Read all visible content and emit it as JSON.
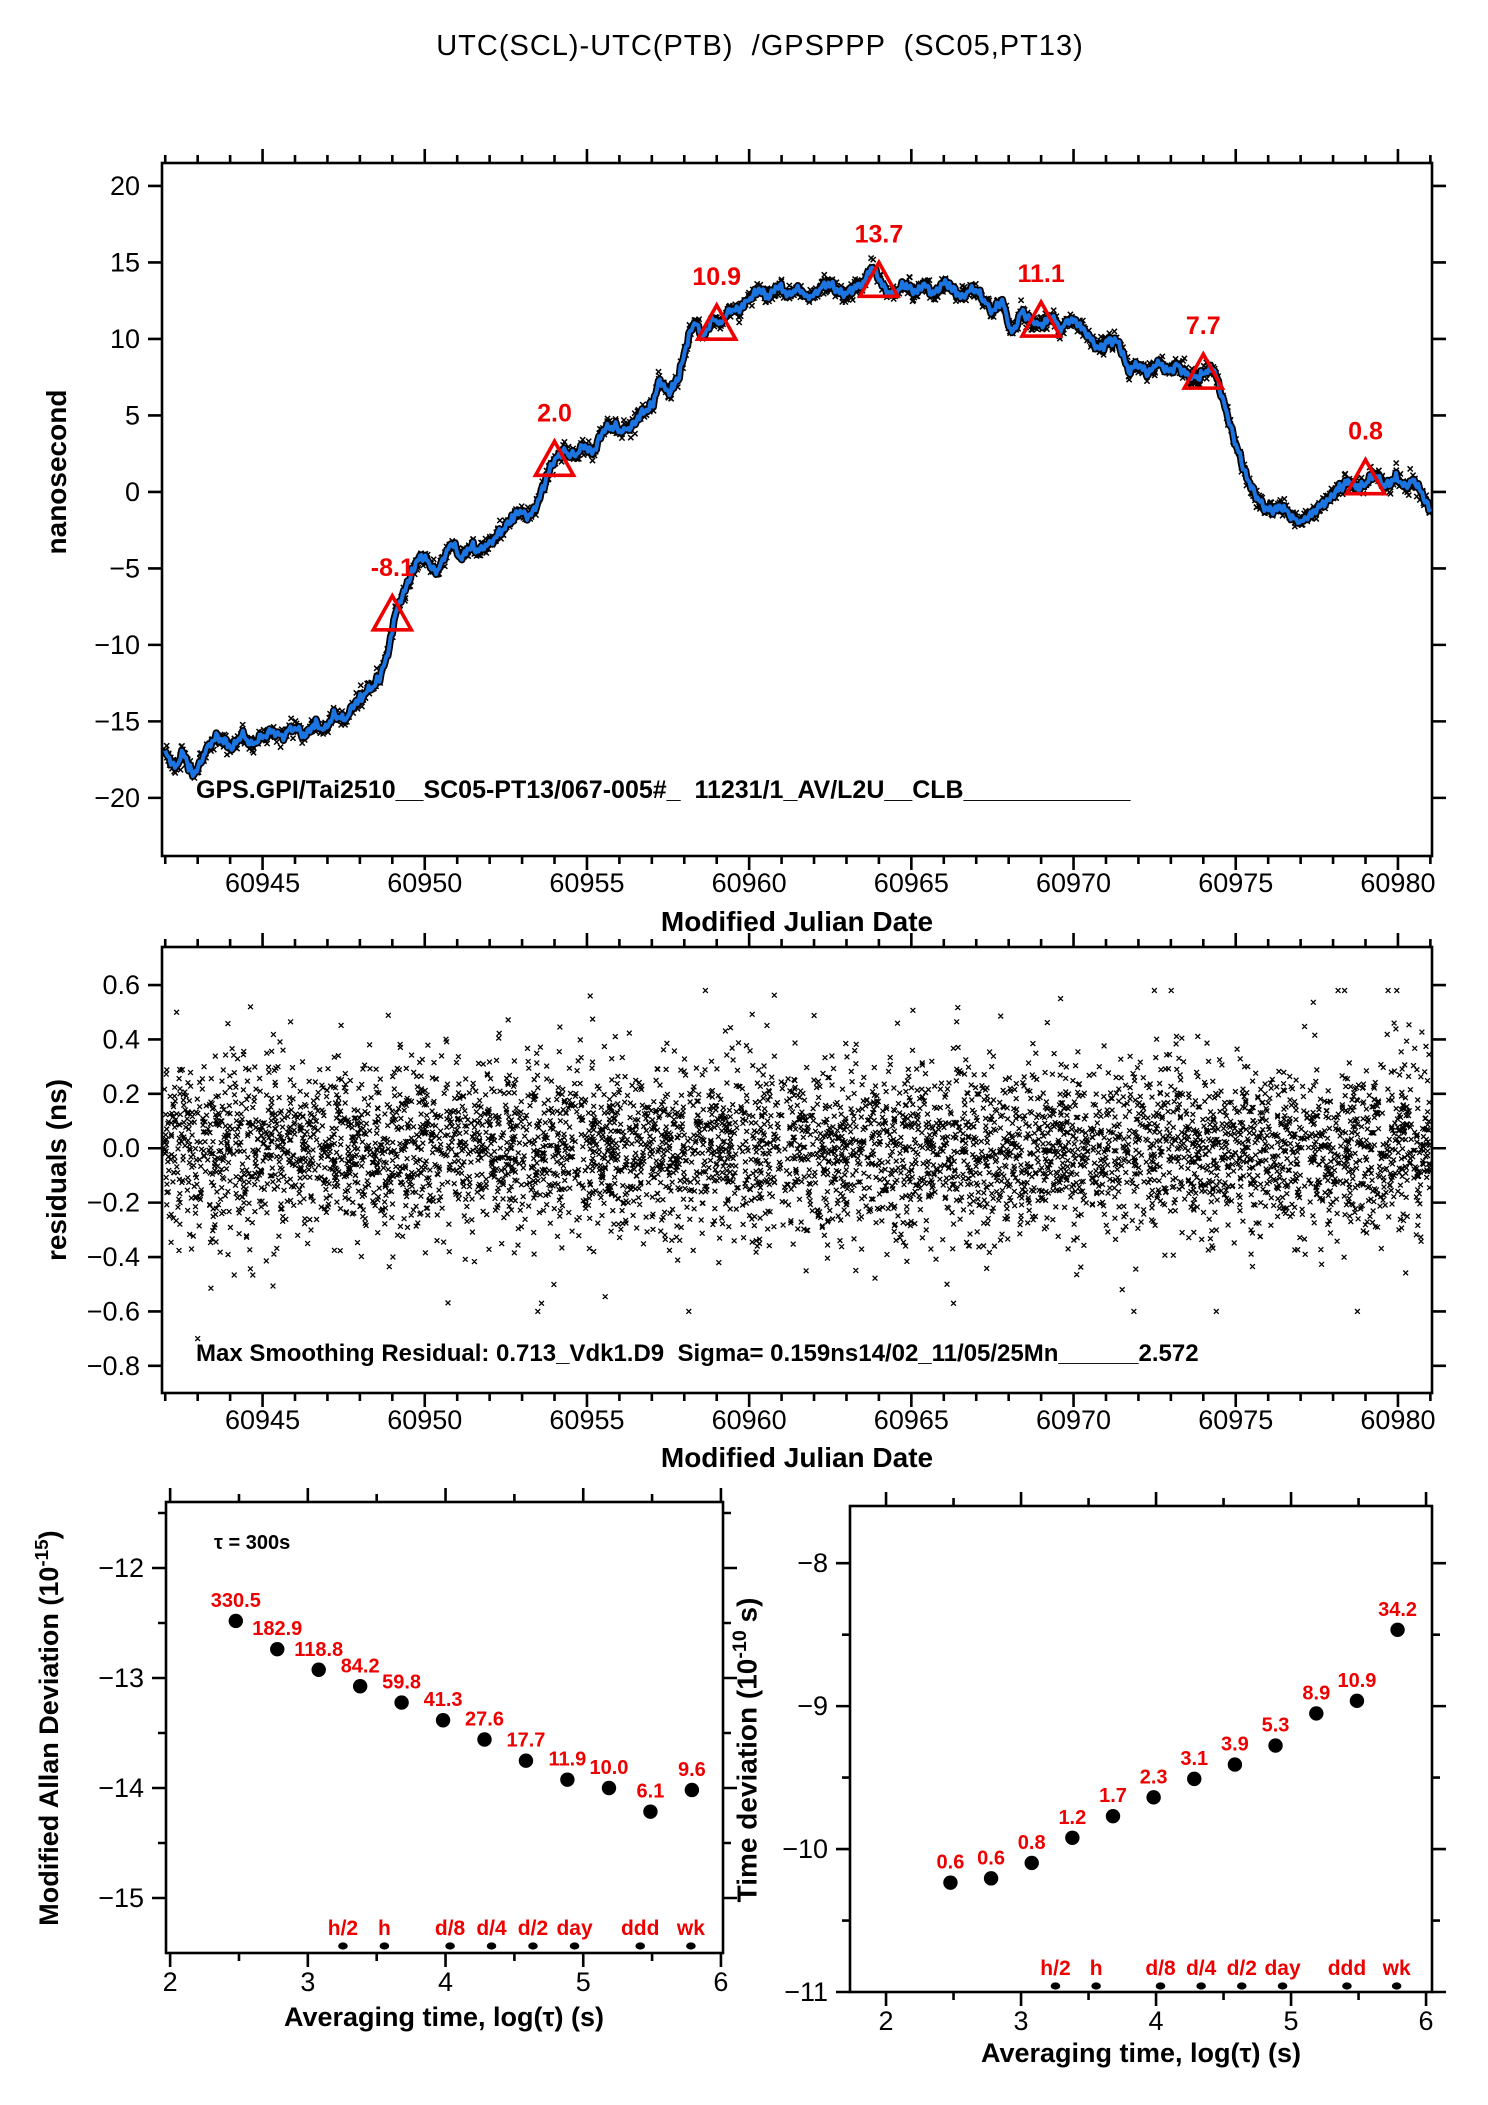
{
  "title": "UTC(SCL)-UTC(PTB)  /GPSPPP  (SC05,PT13)",
  "colors": {
    "red": "#ee0000",
    "blue": "#1b74e0",
    "black": "#000000"
  },
  "chart_data": [
    {
      "name": "clock-difference",
      "type": "line",
      "title": "UTC(SCL)-UTC(PTB)  /GPSPPP  (SC05,PT13)",
      "xlabel": "Modified Julian Date",
      "ylabel": "nanosecond",
      "annotation": "GPS.GPI/Tai2510__SC05-PT13/067-005#_  11231/1_AV/L2U__CLB____________",
      "xlim": [
        60941.9,
        60981.05
      ],
      "ylim": [
        -23.8,
        21.5
      ],
      "x_major_ticks": [
        60945,
        60950,
        60955,
        60960,
        60965,
        60970,
        60975,
        60980
      ],
      "x_tick_labels": [
        "60945",
        "60950",
        "60955",
        "60960",
        "60965",
        "60970",
        "60975",
        "60980"
      ],
      "y_ticks": [
        {
          "v": 20,
          "label": "20"
        },
        {
          "v": 15,
          "label": "15"
        },
        {
          "v": 10,
          "label": "10"
        },
        {
          "v": 5,
          "label": "5"
        },
        {
          "v": 0,
          "label": "0"
        },
        {
          "v": -5,
          "label": "−5"
        },
        {
          "v": -10,
          "label": "−10"
        },
        {
          "v": -15,
          "label": "−15"
        },
        {
          "v": -20,
          "label": "−20"
        }
      ],
      "markers": [
        {
          "x": 60949,
          "y": -8.1,
          "label": "-8.1"
        },
        {
          "x": 60954,
          "y": 2.0,
          "label": "2.0"
        },
        {
          "x": 60959,
          "y": 10.9,
          "label": "10.9"
        },
        {
          "x": 60964,
          "y": 13.7,
          "label": "13.7"
        },
        {
          "x": 60969,
          "y": 11.1,
          "label": "11.1"
        },
        {
          "x": 60974,
          "y": 7.7,
          "label": "7.7"
        },
        {
          "x": 60979,
          "y": 0.8,
          "label": "0.8"
        }
      ],
      "noise_band_ns": 0.26,
      "series_anchors": [
        [
          60942.0,
          -17.0
        ],
        [
          60942.3,
          -17.9
        ],
        [
          60942.55,
          -17.2
        ],
        [
          60942.85,
          -18.4
        ],
        [
          60943.1,
          -17.6
        ],
        [
          60943.4,
          -16.4
        ],
        [
          60943.75,
          -16.1
        ],
        [
          60944.05,
          -16.7
        ],
        [
          60944.35,
          -15.9
        ],
        [
          60944.65,
          -16.5
        ],
        [
          60944.95,
          -16.1
        ],
        [
          60945.3,
          -15.6
        ],
        [
          60945.6,
          -16.0
        ],
        [
          60945.95,
          -15.4
        ],
        [
          60946.3,
          -15.9
        ],
        [
          60946.6,
          -15.2
        ],
        [
          60946.9,
          -15.5
        ],
        [
          60947.2,
          -14.6
        ],
        [
          60947.5,
          -14.9
        ],
        [
          60947.8,
          -14.0
        ],
        [
          60948.1,
          -13.3
        ],
        [
          60948.4,
          -12.7
        ],
        [
          60948.65,
          -11.9
        ],
        [
          60948.9,
          -10.2
        ],
        [
          60949.1,
          -8.0
        ],
        [
          60949.35,
          -6.6
        ],
        [
          60949.6,
          -5.4
        ],
        [
          60949.85,
          -4.2
        ],
        [
          60950.1,
          -4.6
        ],
        [
          60950.35,
          -5.2
        ],
        [
          60950.6,
          -4.3
        ],
        [
          60950.85,
          -3.4
        ],
        [
          60951.1,
          -4.3
        ],
        [
          60951.4,
          -3.6
        ],
        [
          60951.7,
          -3.8
        ],
        [
          60952.0,
          -3.3
        ],
        [
          60952.3,
          -2.6
        ],
        [
          60952.6,
          -2.0
        ],
        [
          60952.9,
          -1.3
        ],
        [
          60953.2,
          -1.6
        ],
        [
          60953.5,
          -0.6
        ],
        [
          60953.8,
          1.2
        ],
        [
          60954.05,
          2.2
        ],
        [
          60954.3,
          2.6
        ],
        [
          60954.6,
          2.4
        ],
        [
          60954.9,
          3.0
        ],
        [
          60955.2,
          2.7
        ],
        [
          60955.5,
          4.0
        ],
        [
          60955.8,
          4.3
        ],
        [
          60956.1,
          4.0
        ],
        [
          60956.4,
          4.4
        ],
        [
          60956.7,
          5.2
        ],
        [
          60957.0,
          5.6
        ],
        [
          60957.25,
          7.2
        ],
        [
          60957.5,
          6.6
        ],
        [
          60957.8,
          7.4
        ],
        [
          60958.1,
          9.8
        ],
        [
          60958.35,
          11.0
        ],
        [
          60958.6,
          10.2
        ],
        [
          60958.85,
          11.2
        ],
        [
          60959.1,
          11.0
        ],
        [
          60959.4,
          11.8
        ],
        [
          60959.7,
          12.0
        ],
        [
          60960.0,
          12.6
        ],
        [
          60960.3,
          13.2
        ],
        [
          60960.6,
          12.8
        ],
        [
          60960.9,
          13.4
        ],
        [
          60961.2,
          12.9
        ],
        [
          60961.5,
          13.3
        ],
        [
          60961.8,
          12.7
        ],
        [
          60962.1,
          13.1
        ],
        [
          60962.4,
          13.6
        ],
        [
          60962.7,
          13.2
        ],
        [
          60963.0,
          13.0
        ],
        [
          60963.3,
          13.4
        ],
        [
          60963.6,
          13.9
        ],
        [
          60963.8,
          14.5
        ],
        [
          60964.0,
          13.9
        ],
        [
          60964.2,
          13.2
        ],
        [
          60964.5,
          13.0
        ],
        [
          60964.8,
          13.5
        ],
        [
          60965.1,
          13.1
        ],
        [
          60965.4,
          13.5
        ],
        [
          60965.7,
          13.0
        ],
        [
          60966.0,
          13.6
        ],
        [
          60966.3,
          13.2
        ],
        [
          60966.6,
          12.8
        ],
        [
          60966.9,
          13.3
        ],
        [
          60967.2,
          12.6
        ],
        [
          60967.5,
          11.9
        ],
        [
          60967.8,
          12.4
        ],
        [
          60968.1,
          10.5
        ],
        [
          60968.4,
          11.7
        ],
        [
          60968.7,
          11.2
        ],
        [
          60969.0,
          10.9
        ],
        [
          60969.3,
          11.4
        ],
        [
          60969.6,
          10.7
        ],
        [
          60969.9,
          11.2
        ],
        [
          60970.2,
          10.8
        ],
        [
          60970.5,
          10.1
        ],
        [
          60970.8,
          9.4
        ],
        [
          60971.1,
          9.9
        ],
        [
          60971.4,
          9.6
        ],
        [
          60971.7,
          8.0
        ],
        [
          60972.0,
          8.3
        ],
        [
          60972.3,
          7.8
        ],
        [
          60972.6,
          8.4
        ],
        [
          60972.9,
          7.9
        ],
        [
          60973.2,
          8.2
        ],
        [
          60973.5,
          7.7
        ],
        [
          60973.8,
          7.5
        ],
        [
          60974.05,
          7.7
        ],
        [
          60974.3,
          8.0
        ],
        [
          60974.55,
          6.4
        ],
        [
          60974.8,
          4.6
        ],
        [
          60975.05,
          2.8
        ],
        [
          60975.3,
          1.2
        ],
        [
          60975.55,
          0.0
        ],
        [
          60975.8,
          -0.8
        ],
        [
          60976.1,
          -1.2
        ],
        [
          60976.4,
          -1.0
        ],
        [
          60976.7,
          -1.6
        ],
        [
          60977.0,
          -1.9
        ],
        [
          60977.3,
          -1.5
        ],
        [
          60977.6,
          -0.9
        ],
        [
          60977.9,
          -0.4
        ],
        [
          60978.2,
          0.3
        ],
        [
          60978.5,
          0.6
        ],
        [
          60978.75,
          0.2
        ],
        [
          60979.0,
          0.6
        ],
        [
          60979.3,
          1.1
        ],
        [
          60979.6,
          0.4
        ],
        [
          60979.9,
          0.9
        ],
        [
          60980.2,
          0.4
        ],
        [
          60980.5,
          0.7
        ],
        [
          60980.75,
          -0.2
        ],
        [
          60981.0,
          -1.1
        ]
      ]
    },
    {
      "name": "residuals",
      "type": "scatter",
      "xlabel": "Modified Julian Date",
      "ylabel": "residuals (ns)",
      "annotation": "Max Smoothing Residual: 0.713_Vdk1.D9  Sigma= 0.159ns14/02_11/05/25Mn______2.572",
      "xlim": [
        60941.9,
        60981.05
      ],
      "ylim": [
        -0.9,
        0.74
      ],
      "x_major_ticks": [
        60945,
        60950,
        60955,
        60960,
        60965,
        60970,
        60975,
        60980
      ],
      "x_tick_labels": [
        "60945",
        "60950",
        "60955",
        "60960",
        "60965",
        "60970",
        "60975",
        "60980"
      ],
      "y_ticks": [
        {
          "v": 0.6,
          "label": "0.6"
        },
        {
          "v": 0.4,
          "label": "0.4"
        },
        {
          "v": 0.2,
          "label": "0.2"
        },
        {
          "v": 0.0,
          "label": "0.0"
        },
        {
          "v": -0.2,
          "label": "−0.2"
        },
        {
          "v": -0.4,
          "label": "−0.4"
        },
        {
          "v": -0.6,
          "label": "−0.6"
        },
        {
          "v": -0.8,
          "label": "−0.8"
        }
      ],
      "noise": {
        "sigma_ns": 0.159,
        "n_points": 5200,
        "clip": [
          -0.6,
          0.58
        ]
      },
      "outliers": [
        [
          60943.0,
          -0.7
        ],
        [
          60942.35,
          0.5
        ],
        [
          60953.6,
          -0.57
        ],
        [
          60955.1,
          0.56
        ],
        [
          60966.3,
          -0.57
        ],
        [
          60966.1,
          -0.5
        ],
        [
          60969.6,
          0.55
        ],
        [
          60971.5,
          -0.52
        ]
      ]
    },
    {
      "name": "modified-allan-deviation",
      "type": "scatter",
      "xlabel": "Averaging time, log(τ) (s)",
      "ylabel_pre": "Modified Allan Deviation (10",
      "ylabel_sup": "-15",
      "ylabel_post": ")",
      "tau_annotation": "τ = 300s",
      "xlim": [
        1.97,
        6.015
      ],
      "ylim": [
        -15.5,
        -11.4
      ],
      "x_major_ticks": [
        2,
        3,
        4,
        5,
        6
      ],
      "x_tick_labels": [
        "2",
        "3",
        "4",
        "5",
        "6"
      ],
      "x_minor_ticks": [
        2.5,
        3.5,
        4.5,
        5.5
      ],
      "y_ticks": [
        {
          "v": -12,
          "label": "−12"
        },
        {
          "v": -13,
          "label": "−13"
        },
        {
          "v": -14,
          "label": "−14"
        },
        {
          "v": -15,
          "label": "−15"
        }
      ],
      "y_minor_ticks": [
        -11.5,
        -12.5,
        -13.5,
        -14.5
      ],
      "points": [
        {
          "log_tau": 2.477,
          "log_dev": -12.481,
          "label": "330.5"
        },
        {
          "log_tau": 2.778,
          "log_dev": -12.738,
          "label": "182.9"
        },
        {
          "log_tau": 3.079,
          "log_dev": -12.925,
          "label": "118.8"
        },
        {
          "log_tau": 3.38,
          "log_dev": -13.075,
          "label": "84.2"
        },
        {
          "log_tau": 3.681,
          "log_dev": -13.223,
          "label": "59.8"
        },
        {
          "log_tau": 3.982,
          "log_dev": -13.384,
          "label": "41.3"
        },
        {
          "log_tau": 4.283,
          "log_dev": -13.559,
          "label": "27.6"
        },
        {
          "log_tau": 4.584,
          "log_dev": -13.752,
          "label": "17.7"
        },
        {
          "log_tau": 4.885,
          "log_dev": -13.924,
          "label": "11.9"
        },
        {
          "log_tau": 5.187,
          "log_dev": -14.0,
          "label": "10.0"
        },
        {
          "log_tau": 5.488,
          "log_dev": -14.215,
          "label": "6.1"
        },
        {
          "log_tau": 5.789,
          "log_dev": -14.018,
          "label": "9.6"
        }
      ],
      "time_markers": [
        {
          "log_tau": 3.255,
          "label": "h/2"
        },
        {
          "log_tau": 3.556,
          "label": "h"
        },
        {
          "log_tau": 4.033,
          "label": "d/8"
        },
        {
          "log_tau": 4.334,
          "label": "d/4"
        },
        {
          "log_tau": 4.635,
          "label": "d/2"
        },
        {
          "log_tau": 4.937,
          "label": "day"
        },
        {
          "log_tau": 5.414,
          "label": "ddd"
        },
        {
          "log_tau": 5.782,
          "label": "wk"
        }
      ]
    },
    {
      "name": "time-deviation",
      "type": "scatter",
      "xlabel": "Averaging time, log(τ) (s)",
      "ylabel_pre": "Time deviation (10",
      "ylabel_sup": "-10",
      "ylabel_post": " s)",
      "xlim": [
        1.733,
        6.044
      ],
      "ylim": [
        -11.0,
        -7.6
      ],
      "x_major_ticks": [
        2,
        3,
        4,
        5,
        6
      ],
      "x_tick_labels": [
        "2",
        "3",
        "4",
        "5",
        "6"
      ],
      "x_minor_ticks": [
        2.5,
        3.5,
        4.5,
        5.5
      ],
      "y_ticks": [
        {
          "v": -8,
          "label": "−8"
        },
        {
          "v": -9,
          "label": "−9"
        },
        {
          "v": -10,
          "label": "−10"
        },
        {
          "v": -11,
          "label": "−11"
        }
      ],
      "y_minor_ticks": [
        -8.5,
        -9.5,
        -10.5
      ],
      "points": [
        {
          "log_tau": 2.477,
          "log_dev": -10.235,
          "label": "0.6"
        },
        {
          "log_tau": 2.778,
          "log_dev": -10.205,
          "label": "0.6"
        },
        {
          "log_tau": 3.079,
          "log_dev": -10.097,
          "label": "0.8"
        },
        {
          "log_tau": 3.38,
          "log_dev": -9.921,
          "label": "1.2"
        },
        {
          "log_tau": 3.681,
          "log_dev": -9.77,
          "label": "1.7"
        },
        {
          "log_tau": 3.982,
          "log_dev": -9.638,
          "label": "2.3"
        },
        {
          "log_tau": 4.283,
          "log_dev": -9.509,
          "label": "3.1"
        },
        {
          "log_tau": 4.584,
          "log_dev": -9.409,
          "label": "3.9"
        },
        {
          "log_tau": 4.885,
          "log_dev": -9.276,
          "label": "5.3"
        },
        {
          "log_tau": 5.187,
          "log_dev": -9.051,
          "label": "8.9"
        },
        {
          "log_tau": 5.488,
          "log_dev": -8.963,
          "label": "10.9"
        },
        {
          "log_tau": 5.789,
          "log_dev": -8.466,
          "label": "34.2"
        }
      ],
      "time_markers": [
        {
          "log_tau": 3.255,
          "label": "h/2"
        },
        {
          "log_tau": 3.556,
          "label": "h"
        },
        {
          "log_tau": 4.033,
          "label": "d/8"
        },
        {
          "log_tau": 4.334,
          "label": "d/4"
        },
        {
          "log_tau": 4.635,
          "label": "d/2"
        },
        {
          "log_tau": 4.937,
          "label": "day"
        },
        {
          "log_tau": 5.414,
          "label": "ddd"
        },
        {
          "log_tau": 5.782,
          "label": "wk"
        }
      ]
    }
  ]
}
